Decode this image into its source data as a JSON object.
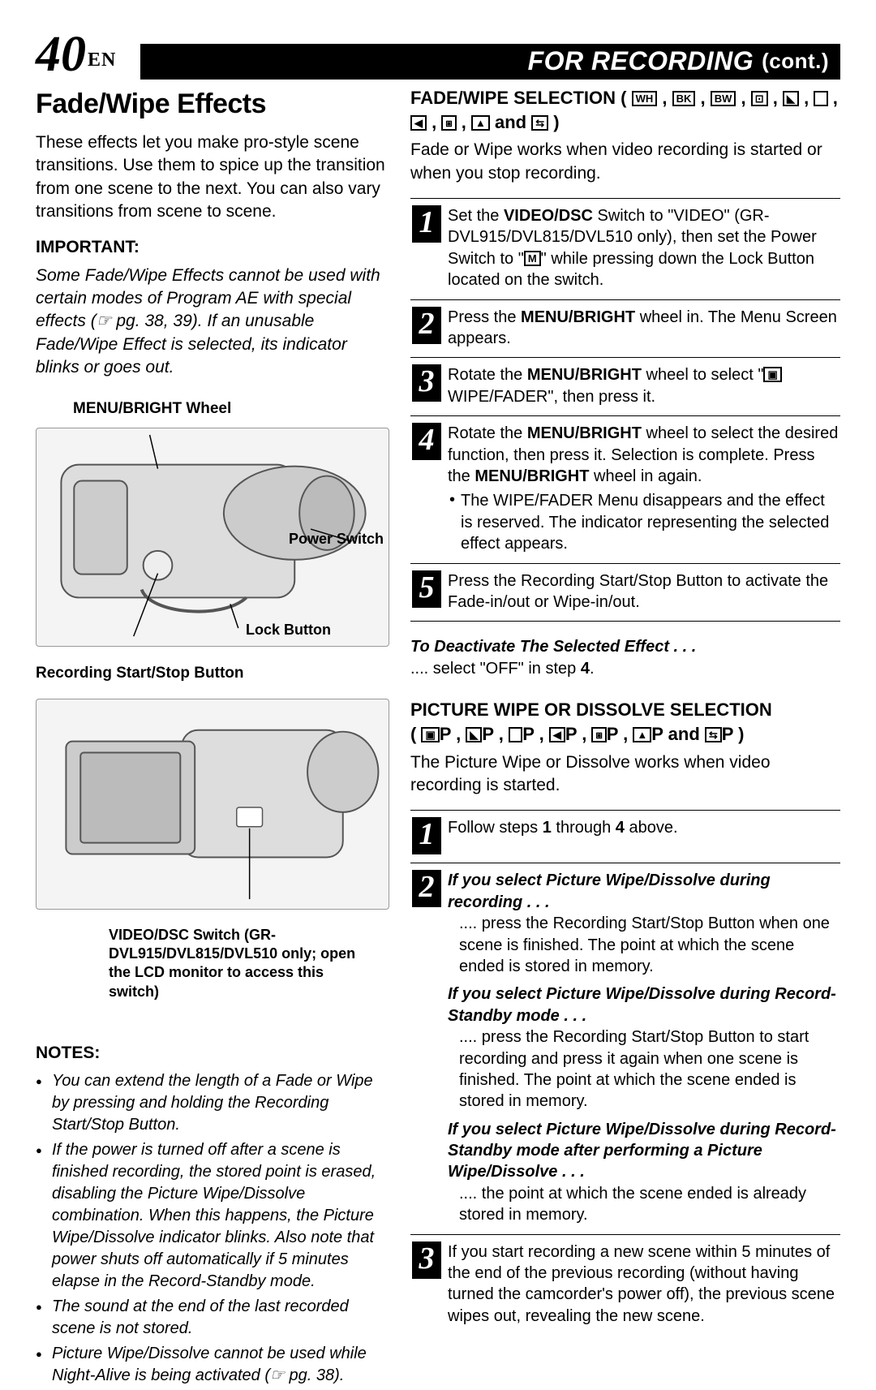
{
  "header": {
    "page_number": "40",
    "page_suffix": "EN",
    "bar_title": "FOR RECORDING",
    "bar_cont": "(cont.)"
  },
  "left": {
    "title": "Fade/Wipe Effects",
    "intro": "These effects let you make pro-style scene transitions. Use them to spice up the transition from one scene to the next. You can also vary transitions from scene to scene.",
    "important_heading": "IMPORTANT:",
    "important_body": "Some Fade/Wipe Effects cannot be used with certain modes of Program AE with special effects (☞ pg. 38, 39). If an unusable Fade/Wipe Effect is selected, its indicator blinks or goes out.",
    "diagram1": {
      "title": "MENU/BRIGHT Wheel",
      "power_switch": "Power Switch",
      "lock_button": "Lock Button",
      "rec_button": "Recording Start/Stop Button"
    },
    "diagram2": {
      "caption": "VIDEO/DSC Switch (GR-DVL915/DVL815/DVL510 only; open the LCD monitor to access this switch)"
    },
    "notes_heading": "NOTES:",
    "notes": [
      "You can extend the length of a Fade or Wipe by pressing and holding the Recording Start/Stop Button.",
      "If the power is turned off after a scene is finished recording, the stored point is erased, disabling the Picture Wipe/Dissolve combination. When this happens, the Picture Wipe/Dissolve indicator blinks. Also note that power shuts off automatically if 5 minutes elapse in the Record-Standby mode.",
      "The sound at the end of the last recorded scene is not stored.",
      "Picture Wipe/Dissolve cannot be used while Night-Alive is being activated (☞ pg. 38)."
    ]
  },
  "right": {
    "fade_heading_pre": "FADE/WIPE SELECTION (",
    "fade_heading_icons": [
      "WH",
      "BK",
      "BW",
      "◊",
      "◣",
      "□",
      "◥",
      "⬗",
      "▲",
      "⇄"
    ],
    "fade_heading_and": " and ",
    "fade_heading_post": " )",
    "fade_body": "Fade or Wipe works when video recording is started or when you stop recording.",
    "steps_a": [
      "Set the <b>VIDEO/DSC</b> Switch to \"VIDEO\" (GR-DVL915/DVL815/DVL510 only), then set the Power Switch to \"<span class='icon-box'>M</span>\" while pressing down the Lock Button located on the switch.",
      "Press the <b>MENU/BRIGHT</b> wheel in. The Menu Screen appears.",
      "Rotate the <b>MENU/BRIGHT</b> wheel to select \"<span class='icon-box'>▣</span> WIPE/FADER\", then press it.",
      "Rotate the <b>MENU/BRIGHT</b> wheel to select the desired function, then press it. Selection is complete. Press the <b>MENU/BRIGHT</b> wheel in again.<ul><li>The WIPE/FADER Menu disappears and the effect is reserved. The indicator representing the selected effect appears.</li></ul>",
      "Press the Recording Start/Stop Button to activate the Fade-in/out or Wipe-in/out."
    ],
    "deactivate_title": "To Deactivate The Selected Effect . . .",
    "deactivate_body": ".... select \"OFF\" in step <b>4</b>.",
    "picture_heading": "PICTURE WIPE OR DISSOLVE SELECTION",
    "picture_icons_pre": "( ",
    "picture_icons": [
      "▣P",
      "◣P",
      "□P",
      "◥P",
      "⬗P",
      "▲P",
      "⇄P"
    ],
    "picture_heading_and": " and ",
    "picture_heading_post": " )",
    "picture_body": "The Picture Wipe or Dissolve works when video recording is started.",
    "steps_b": {
      "1": "Follow steps <b>1</b> through <b>4</b> above.",
      "2": {
        "h1": "If you select Picture Wipe/Dissolve during recording . . .",
        "b1": ".... press the Recording Start/Stop Button when one scene is finished. The point at which the scene ended is stored in memory.",
        "h2": "If you select Picture Wipe/Dissolve during Record-Standby mode . . .",
        "b2": ".... press the Recording Start/Stop Button to start recording and press it again when one scene is finished. The point at which the scene ended is stored in memory.",
        "h3": "If you select Picture Wipe/Dissolve during Record-Standby mode after performing a Picture Wipe/Dissolve . . .",
        "b3": ".... the point at which the scene ended is already stored in memory."
      },
      "3": "If you start recording a new scene within 5 minutes of the end of the previous recording (without having turned the camcorder's power off), the previous scene wipes out, revealing the new scene."
    }
  }
}
